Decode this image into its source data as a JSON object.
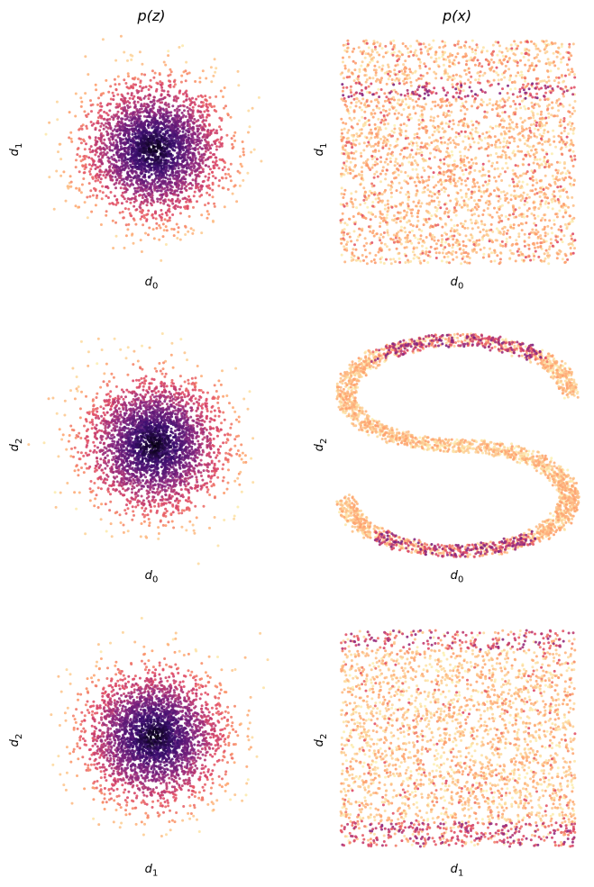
{
  "columns": [
    "p(z)",
    "p(x)"
  ],
  "colormap": [
    "#000004",
    "#3b0f70",
    "#8c2981",
    "#de4968",
    "#fe9f6d",
    "#fcfdbf"
  ],
  "chart_data": [
    {
      "type": "scatter",
      "column": "p(z)",
      "row": 1,
      "xlabel": "d0",
      "ylabel": "d1",
      "distribution": "standard-normal",
      "mean": [
        0,
        0
      ],
      "std": 1.0,
      "n_points": 3000,
      "color": "density",
      "axes_visible": false
    },
    {
      "type": "scatter",
      "column": "p(x)",
      "row": 1,
      "xlabel": "d0",
      "ylabel": "d1",
      "distribution": "S-curve projection (uniform block)",
      "xlim": [
        -1,
        1
      ],
      "ylim": [
        -1,
        1
      ],
      "n_points": 3000,
      "color": "density",
      "axes_visible": false
    },
    {
      "type": "scatter",
      "column": "p(z)",
      "row": 2,
      "xlabel": "d0",
      "ylabel": "d2",
      "distribution": "standard-normal",
      "mean": [
        0,
        0
      ],
      "std": 1.0,
      "n_points": 3000,
      "color": "density",
      "axes_visible": false
    },
    {
      "type": "scatter",
      "column": "p(x)",
      "row": 2,
      "xlabel": "d0",
      "ylabel": "d2",
      "distribution": "S-curve",
      "xlim": [
        -1,
        1
      ],
      "ylim": [
        -2,
        2
      ],
      "n_points": 3000,
      "color": "density",
      "axes_visible": false
    },
    {
      "type": "scatter",
      "column": "p(z)",
      "row": 3,
      "xlabel": "d1",
      "ylabel": "d2",
      "distribution": "standard-normal",
      "mean": [
        0,
        0
      ],
      "std": 1.0,
      "n_points": 3000,
      "color": "density",
      "axes_visible": false
    },
    {
      "type": "scatter",
      "column": "p(x)",
      "row": 3,
      "xlabel": "d1",
      "ylabel": "d2",
      "distribution": "S-curve side view (uniform block)",
      "xlim": [
        -1,
        1
      ],
      "ylim": [
        -2,
        2
      ],
      "n_points": 3000,
      "color": "density",
      "axes_visible": false
    }
  ]
}
